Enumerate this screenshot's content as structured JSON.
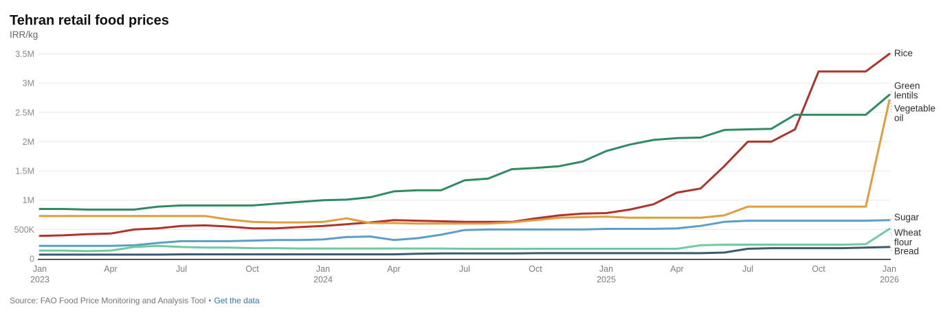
{
  "title": "Tehran retail food prices",
  "unit": "IRR/kg",
  "footer": {
    "source": "Source: FAO Food Price Monitoring and Analysis Tool",
    "separator": "•",
    "link_label": "Get the data"
  },
  "colors": {
    "rice": "#b0332b",
    "green_lentils": "#2f8a62",
    "vegetable_oil": "#e09c3d",
    "sugar": "#5b9fc7",
    "wheat_flour": "#6fcb9f",
    "bread": "#3a5a70",
    "gridline": "#e7e7e7",
    "axis_line": "#1a1a1a",
    "tick_label": "#8a8a8a",
    "end_label": "#2d2d2d",
    "link": "#2d73b5"
  },
  "chart_data": {
    "type": "line",
    "title": "Tehran retail food prices",
    "ylabel": "IRR/kg",
    "grid": "horizontal",
    "legend_position": "right-edge-direct-labels",
    "y_max": 3500000,
    "ylim": [
      0,
      3500000
    ],
    "y_ticks": [
      {
        "value": 0,
        "label": "0"
      },
      {
        "value": 500000,
        "label": "500K"
      },
      {
        "value": 1000000,
        "label": "1M"
      },
      {
        "value": 1500000,
        "label": "1.5M"
      },
      {
        "value": 2000000,
        "label": "2M"
      },
      {
        "value": 2500000,
        "label": "2.5M"
      },
      {
        "value": 3000000,
        "label": "3M"
      },
      {
        "value": 3500000,
        "label": "3.5M"
      }
    ],
    "x": [
      "Jan 2023",
      "Feb 2023",
      "Mar 2023",
      "Apr 2023",
      "May 2023",
      "Jun 2023",
      "Jul 2023",
      "Aug 2023",
      "Sep 2023",
      "Oct 2023",
      "Nov 2023",
      "Dec 2023",
      "Jan 2024",
      "Feb 2024",
      "Mar 2024",
      "Apr 2024",
      "May 2024",
      "Jun 2024",
      "Jul 2024",
      "Aug 2024",
      "Sep 2024",
      "Oct 2024",
      "Nov 2024",
      "Dec 2024",
      "Jan 2025",
      "Feb 2025",
      "Mar 2025",
      "Apr 2025",
      "May 2025",
      "Jun 2025",
      "Jul 2025",
      "Aug 2025",
      "Sep 2025",
      "Oct 2025",
      "Nov 2025",
      "Dec 2025",
      "Jan 2026"
    ],
    "x_ticks": [
      {
        "index": 0,
        "label": "Jan",
        "year": "2023"
      },
      {
        "index": 3,
        "label": "Apr"
      },
      {
        "index": 6,
        "label": "Jul"
      },
      {
        "index": 9,
        "label": "Oct"
      },
      {
        "index": 12,
        "label": "Jan",
        "year": "2024"
      },
      {
        "index": 15,
        "label": "Apr"
      },
      {
        "index": 18,
        "label": "Jul"
      },
      {
        "index": 21,
        "label": "Oct"
      },
      {
        "index": 24,
        "label": "Jan",
        "year": "2025"
      },
      {
        "index": 27,
        "label": "Apr"
      },
      {
        "index": 30,
        "label": "Jul"
      },
      {
        "index": 33,
        "label": "Oct"
      },
      {
        "index": 36,
        "label": "Jan",
        "year": "2026"
      }
    ],
    "series": [
      {
        "name": "Rice",
        "label_lines": [
          "Rice"
        ],
        "color": "#b0332b",
        "values": [
          390000,
          400000,
          420000,
          430000,
          500000,
          520000,
          560000,
          570000,
          550000,
          520000,
          520000,
          540000,
          560000,
          590000,
          620000,
          660000,
          650000,
          640000,
          630000,
          630000,
          630000,
          690000,
          740000,
          770000,
          780000,
          840000,
          930000,
          1130000,
          1200000,
          1580000,
          2000000,
          2000000,
          2210000,
          3200000,
          3200000,
          3200000,
          3500000
        ]
      },
      {
        "name": "Green lentils",
        "label_lines": [
          "Green",
          "lentils"
        ],
        "color": "#2f8a62",
        "values": [
          850000,
          850000,
          840000,
          840000,
          840000,
          890000,
          910000,
          910000,
          910000,
          910000,
          940000,
          970000,
          1000000,
          1010000,
          1050000,
          1150000,
          1170000,
          1170000,
          1340000,
          1370000,
          1530000,
          1550000,
          1580000,
          1660000,
          1840000,
          1950000,
          2030000,
          2060000,
          2070000,
          2200000,
          2210000,
          2220000,
          2460000,
          2460000,
          2460000,
          2460000,
          2800000
        ]
      },
      {
        "name": "Vegetable oil",
        "label_lines": [
          "Vegetable",
          "oil"
        ],
        "color": "#e09c3d",
        "values": [
          730000,
          730000,
          730000,
          730000,
          730000,
          730000,
          730000,
          730000,
          670000,
          630000,
          620000,
          620000,
          630000,
          690000,
          610000,
          610000,
          600000,
          600000,
          600000,
          600000,
          620000,
          660000,
          700000,
          710000,
          720000,
          700000,
          700000,
          700000,
          700000,
          740000,
          890000,
          890000,
          890000,
          890000,
          890000,
          890000,
          2710000
        ]
      },
      {
        "name": "Sugar",
        "label_lines": [
          "Sugar"
        ],
        "color": "#5b9fc7",
        "values": [
          220000,
          220000,
          220000,
          220000,
          230000,
          270000,
          300000,
          300000,
          300000,
          310000,
          320000,
          320000,
          330000,
          370000,
          380000,
          320000,
          350000,
          410000,
          490000,
          500000,
          500000,
          500000,
          500000,
          500000,
          510000,
          510000,
          510000,
          520000,
          560000,
          630000,
          650000,
          650000,
          650000,
          650000,
          650000,
          650000,
          660000
        ]
      },
      {
        "name": "Wheat flour",
        "label_lines": [
          "Wheat",
          "flour"
        ],
        "color": "#6fcb9f",
        "values": [
          140000,
          140000,
          130000,
          140000,
          200000,
          220000,
          200000,
          190000,
          190000,
          180000,
          180000,
          175000,
          175000,
          175000,
          175000,
          175000,
          175000,
          175000,
          170000,
          170000,
          170000,
          170000,
          170000,
          170000,
          170000,
          170000,
          170000,
          170000,
          230000,
          240000,
          240000,
          240000,
          240000,
          240000,
          240000,
          250000,
          510000
        ]
      },
      {
        "name": "Bread",
        "label_lines": [
          "Bread"
        ],
        "color": "#3a5a70",
        "values": [
          70000,
          70000,
          70000,
          70000,
          70000,
          70000,
          75000,
          75000,
          75000,
          75000,
          75000,
          75000,
          75000,
          75000,
          75000,
          75000,
          85000,
          90000,
          90000,
          90000,
          90000,
          95000,
          95000,
          95000,
          95000,
          95000,
          95000,
          95000,
          95000,
          105000,
          170000,
          180000,
          180000,
          180000,
          180000,
          190000,
          200000
        ]
      }
    ]
  }
}
